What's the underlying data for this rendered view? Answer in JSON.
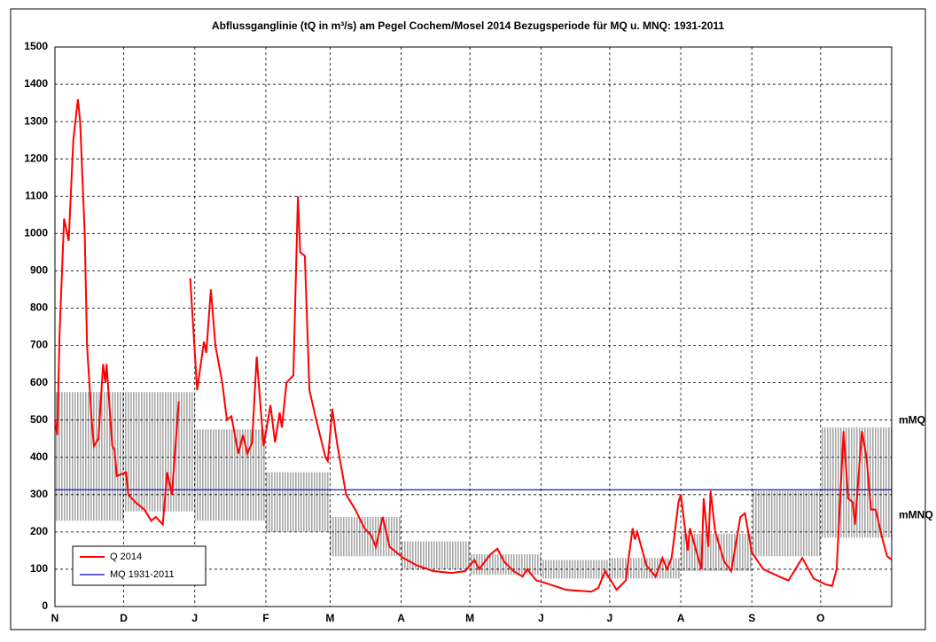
{
  "chart_data": {
    "type": "line",
    "title": "Abflussganglinie  (tQ in m³/s)  am Pegel Cochem/Mosel  2014  Bezugsperiode für MQ u. MNQ: 1931-2011",
    "xlim": [
      0,
      365
    ],
    "xticks": [
      {
        "value": 0,
        "label": "N"
      },
      {
        "value": 30,
        "label": "D"
      },
      {
        "value": 61,
        "label": "J"
      },
      {
        "value": 92,
        "label": "F"
      },
      {
        "value": 120,
        "label": "M"
      },
      {
        "value": 151,
        "label": "A"
      },
      {
        "value": 181,
        "label": "M"
      },
      {
        "value": 212,
        "label": "J"
      },
      {
        "value": 242,
        "label": "J"
      },
      {
        "value": 273,
        "label": "A"
      },
      {
        "value": 304,
        "label": "S"
      },
      {
        "value": 334,
        "label": "O"
      }
    ],
    "ylim": [
      0,
      1500
    ],
    "yticks": [
      0,
      100,
      200,
      300,
      400,
      500,
      600,
      700,
      800,
      900,
      1000,
      1100,
      1200,
      1300,
      1400,
      1500
    ],
    "grid": true,
    "legend": "lower left",
    "series": [
      {
        "name": "Q 2014",
        "color": "#ff0000",
        "x": [
          0,
          1,
          2,
          4,
          6,
          8,
          10,
          11,
          13,
          14,
          16,
          17,
          19,
          21,
          22,
          22.5,
          25,
          26,
          27,
          31,
          32,
          35,
          39,
          42,
          44,
          47,
          49,
          51,
          54,
          56,
          59,
          62,
          65,
          66,
          68,
          70,
          73,
          75,
          77,
          80,
          82,
          84,
          86,
          88,
          91,
          94,
          96,
          98,
          99,
          101,
          104,
          106,
          107,
          109,
          111,
          114,
          118,
          119,
          121,
          123,
          127,
          131,
          135,
          138,
          140,
          143,
          146,
          152,
          158,
          165,
          173,
          179,
          183,
          185,
          190,
          193,
          196,
          200,
          204,
          206,
          210,
          213,
          223,
          234,
          237,
          240,
          245,
          249,
          252,
          253,
          254,
          258,
          262,
          265,
          267,
          269,
          272,
          273,
          276,
          277,
          282,
          283,
          285,
          286,
          288,
          292,
          295,
          299,
          301,
          304,
          309,
          316,
          320,
          326,
          331,
          336,
          339,
          341,
          344,
          346,
          348,
          349,
          352,
          354,
          356,
          358,
          361,
          363,
          365
        ],
        "values": [
          500,
          460,
          730,
          1040,
          980,
          1250,
          1360,
          1300,
          1000,
          700,
          500,
          430,
          450,
          650,
          600,
          650,
          430,
          420,
          350,
          360,
          300,
          280,
          260,
          230,
          240,
          220,
          360,
          300,
          550,
          null,
          880,
          580,
          710,
          680,
          850,
          700,
          600,
          500,
          510,
          410,
          460,
          410,
          440,
          670,
          430,
          540,
          440,
          520,
          480,
          600,
          620,
          1100,
          950,
          940,
          580,
          500,
          400,
          390,
          530,
          440,
          300,
          260,
          210,
          190,
          160,
          240,
          160,
          130,
          110,
          95,
          90,
          95,
          125,
          100,
          140,
          155,
          120,
          95,
          80,
          100,
          70,
          65,
          45,
          40,
          50,
          95,
          45,
          70,
          210,
          180,
          200,
          110,
          80,
          130,
          100,
          130,
          280,
          300,
          150,
          210,
          100,
          290,
          160,
          310,
          200,
          120,
          95,
          240,
          250,
          145,
          100,
          80,
          70,
          130,
          75,
          60,
          55,
          100,
          470,
          290,
          280,
          220,
          470,
          400,
          260,
          260,
          180,
          135,
          125
        ]
      },
      {
        "name": "MQ 1931-2011",
        "color": "#0000cc",
        "x": [
          0,
          365
        ],
        "values": [
          313,
          313
        ]
      }
    ],
    "bands": {
      "upper_name": "mMQ",
      "lower_name": "mMNQ",
      "color": "#a8a8a8",
      "upper": [
        575,
        575,
        475,
        360,
        240,
        175,
        140,
        125,
        130,
        195,
        310,
        480
      ],
      "lower": [
        230,
        255,
        230,
        200,
        135,
        100,
        85,
        75,
        75,
        95,
        135,
        185
      ]
    }
  }
}
